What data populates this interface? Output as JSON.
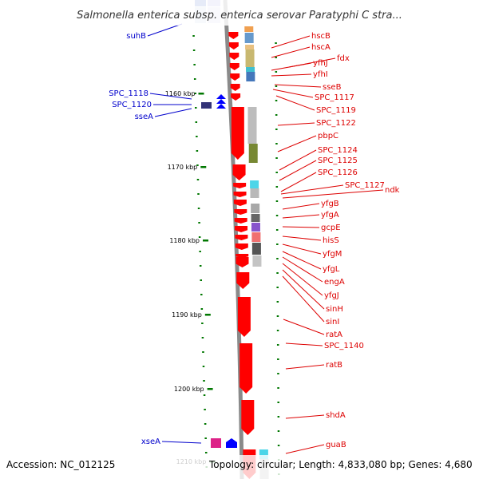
{
  "title": "Salmonella enterica subsp. enterica serovar Paratyphi C stra...",
  "accession": "Accession: NC_012125",
  "topology": "Topology: circular; Length: 4,833,080 bp; Genes: 4,680",
  "ticks": [
    "1160 kbp",
    "1170 kbp",
    "1180 kbp",
    "1190 kbp",
    "1200 kbp",
    "1210 kbp"
  ],
  "right_genes": [
    "hscB",
    "hscA",
    "fdx",
    "yfhJ",
    "yfhI",
    "sseB",
    "SPC_1117",
    "SPC_1119",
    "SPC_1122",
    "pbpC",
    "SPC_1124",
    "SPC_1125",
    "SPC_1126",
    "SPC_1127",
    "ndk",
    "yfgB",
    "yfgA",
    "gcpE",
    "hisS",
    "yfgM",
    "yfgL",
    "engA",
    "yfgJ",
    "sinH",
    "sinI",
    "ratA",
    "SPC_1140",
    "ratB",
    "shdA",
    "guaB"
  ],
  "left_genes": [
    "suhB",
    "SPC_1118",
    "SPC_1120",
    "sseA",
    "xseA"
  ],
  "colors": {
    "forward_gene": "#ff0000",
    "reverse_gene": "#0000ff",
    "backbone": "#888888",
    "tick": "#007700"
  }
}
